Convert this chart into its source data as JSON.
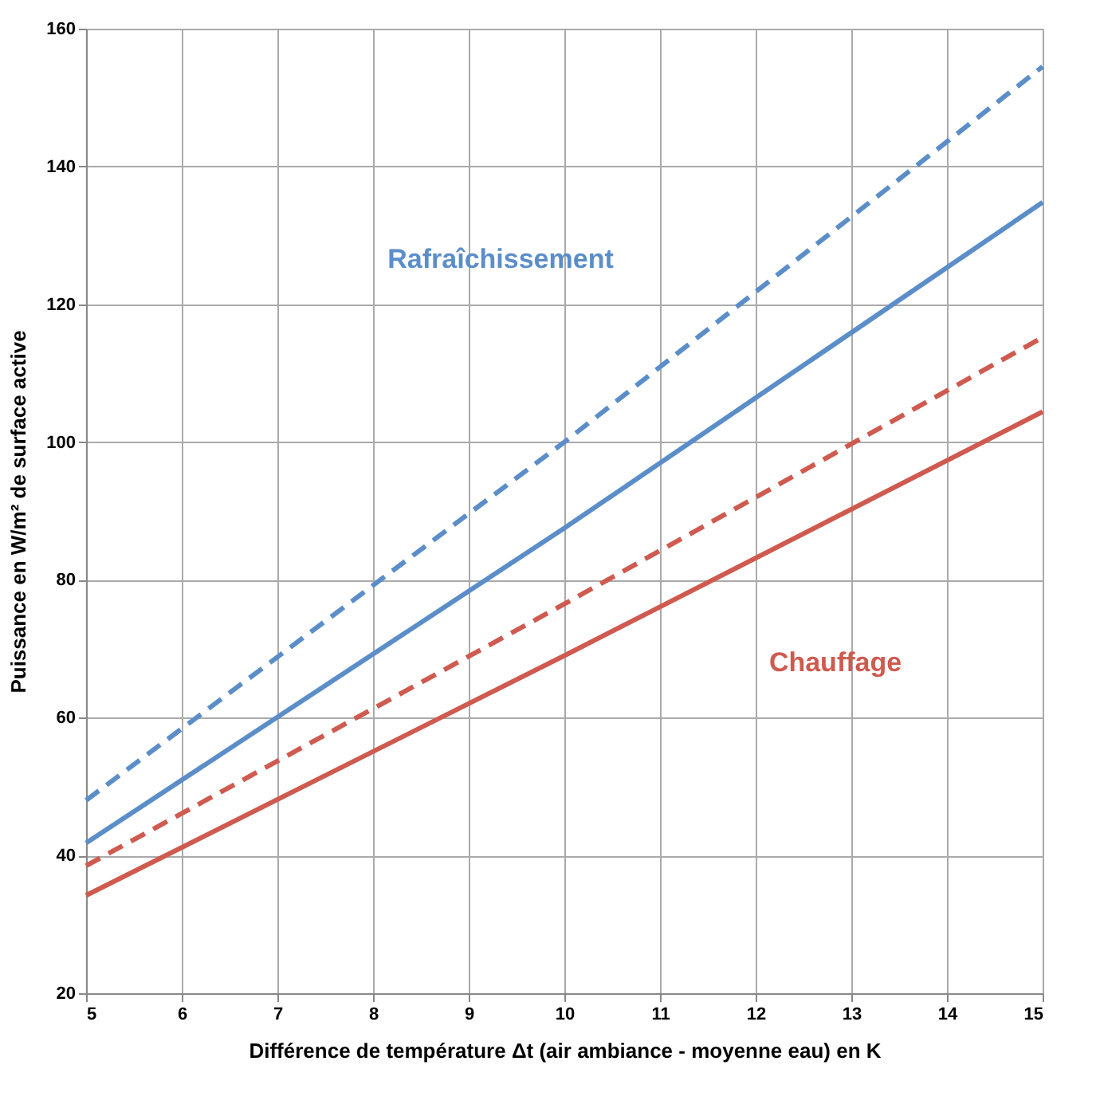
{
  "chart_data": {
    "type": "line",
    "xlabel": "Différence de température Δt (air ambiance - moyenne eau) en K",
    "ylabel": "Puissance en W/m² de surface active",
    "x": [
      5,
      10,
      15
    ],
    "series": [
      {
        "color": "#5b8ec9",
        "values": [
          48,
          100,
          154.5
        ],
        "line_style": "dashed"
      },
      {
        "color": "#5b8ec9",
        "values": [
          41.8,
          87.5,
          134.8
        ],
        "line_style": "solid"
      },
      {
        "color": "#cf5a4f",
        "values": [
          38.5,
          76.5,
          115.2
        ],
        "line_style": "dashed"
      },
      {
        "color": "#cf5a4f",
        "values": [
          34.2,
          69,
          104.4
        ],
        "line_style": "solid"
      }
    ],
    "xlim": [
      5,
      15
    ],
    "xticks": [
      5,
      6,
      7,
      8,
      9,
      10,
      11,
      12,
      13,
      14,
      15
    ],
    "ylim": [
      20,
      160
    ],
    "yticks": [
      20,
      40,
      60,
      80,
      100,
      120,
      140,
      160
    ],
    "grid": true,
    "marker": "none",
    "annotations": [
      "Rafraîchissement",
      "Chauffage"
    ]
  }
}
